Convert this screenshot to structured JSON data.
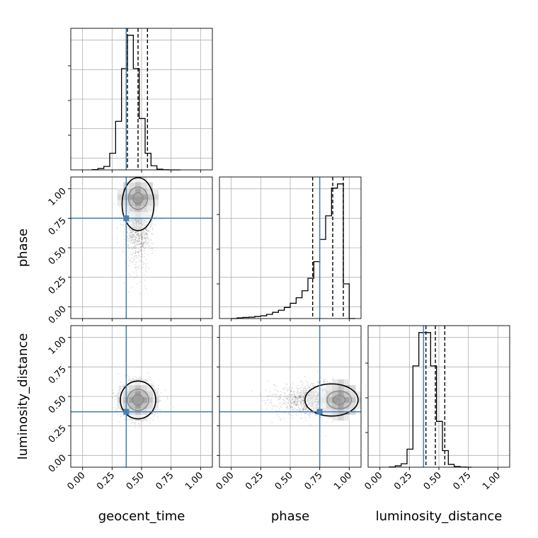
{
  "chart_data": {
    "type": "corner",
    "parameters": [
      "geocent_time",
      "phase",
      "luminosity_distance"
    ],
    "axis_labels": {
      "geocent_time": "geocent_time",
      "phase": "phase",
      "luminosity_distance": "luminosity_distance"
    },
    "axis_range": [
      -0.1,
      1.1
    ],
    "ticks": [
      0.0,
      0.25,
      0.5,
      0.75,
      1.0
    ],
    "tick_labels": [
      "0.00",
      "0.25",
      "0.50",
      "0.75",
      "1.00"
    ],
    "grid": true,
    "truth_color": "#4682b4",
    "truths": {
      "geocent_time": 0.37,
      "phase": 0.75,
      "luminosity_distance": 0.37
    },
    "quantiles": {
      "geocent_time": [
        0.38,
        0.47,
        0.55
      ],
      "phase": [
        0.69,
        0.86,
        0.95
      ],
      "luminosity_distance": [
        0.39,
        0.47,
        0.55
      ]
    },
    "histograms": {
      "geocent_time": {
        "bin_edges": [
          0.08,
          0.13,
          0.18,
          0.23,
          0.28,
          0.33,
          0.38,
          0.43,
          0.48,
          0.53,
          0.58,
          0.63,
          0.68,
          0.73,
          0.78,
          0.83
        ],
        "heights": [
          0.002,
          0.01,
          0.025,
          0.12,
          0.35,
          0.73,
          0.97,
          0.73,
          0.37,
          0.12,
          0.03,
          0.005,
          0.001,
          0.0,
          0.0
        ]
      },
      "phase": {
        "bin_edges": [
          0.0,
          0.05,
          0.1,
          0.15,
          0.2,
          0.25,
          0.3,
          0.35,
          0.4,
          0.45,
          0.5,
          0.55,
          0.6,
          0.65,
          0.7,
          0.75,
          0.8,
          0.85,
          0.9,
          0.95,
          1.0,
          1.05
        ],
        "heights": [
          0.0,
          0.005,
          0.008,
          0.01,
          0.015,
          0.02,
          0.03,
          0.045,
          0.06,
          0.08,
          0.11,
          0.15,
          0.2,
          0.29,
          0.41,
          0.57,
          0.74,
          0.94,
          0.97,
          0.25,
          0.0
        ]
      },
      "luminosity_distance": {
        "bin_edges": [
          0.08,
          0.13,
          0.18,
          0.23,
          0.28,
          0.33,
          0.38,
          0.43,
          0.48,
          0.53,
          0.58,
          0.63,
          0.68,
          0.73,
          0.78
        ],
        "heights": [
          0.002,
          0.01,
          0.025,
          0.13,
          0.73,
          0.97,
          0.97,
          0.73,
          0.33,
          0.12,
          0.02,
          0.005,
          0.001,
          0.0
        ]
      }
    },
    "panels_2d": [
      {
        "x": "geocent_time",
        "y": "phase",
        "center": [
          0.47,
          0.93
        ],
        "spread": [
          0.06,
          0.12
        ],
        "skew": "toward-low-y"
      },
      {
        "x": "geocent_time",
        "y": "luminosity_distance",
        "center": [
          0.47,
          0.47
        ],
        "spread": [
          0.07,
          0.07
        ],
        "skew": "none"
      },
      {
        "x": "phase",
        "y": "luminosity_distance",
        "center": [
          0.93,
          0.47
        ],
        "spread": [
          0.12,
          0.07
        ],
        "skew": "toward-low-x"
      }
    ]
  }
}
